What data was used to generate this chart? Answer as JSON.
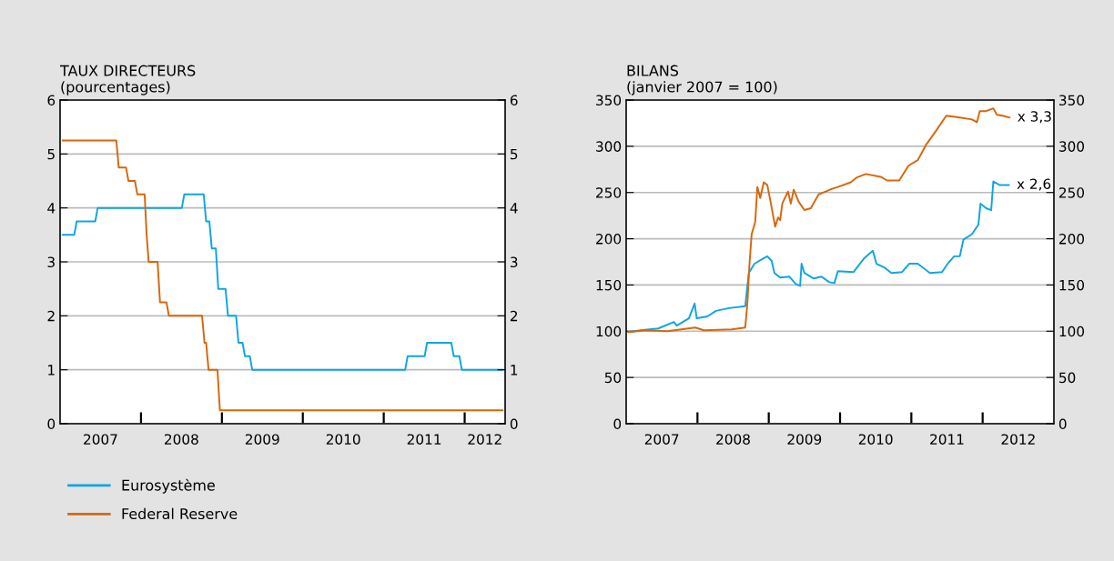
{
  "chart_data": [
    {
      "type": "line",
      "title": "TAUX DIRECTEURS",
      "subtitle": "(pourcentages)",
      "xlim": [
        2007,
        2012.5
      ],
      "xticks": [
        {
          "value": 2007.5,
          "label": "2007"
        },
        {
          "value": 2008,
          "label": null
        },
        {
          "value": 2008.5,
          "label": "2008"
        },
        {
          "value": 2009,
          "label": null
        },
        {
          "value": 2009.5,
          "label": "2009"
        },
        {
          "value": 2010,
          "label": null
        },
        {
          "value": 2010.5,
          "label": "2010"
        },
        {
          "value": 2011,
          "label": null
        },
        {
          "value": 2011.5,
          "label": "2011"
        },
        {
          "value": 2012,
          "label": null
        },
        {
          "value": 2012.25,
          "label": "2012"
        }
      ],
      "ylim": [
        0,
        6
      ],
      "yticks": [
        0,
        1,
        2,
        3,
        4,
        5,
        6
      ],
      "y2lim": [
        0,
        6
      ],
      "y2ticks": [
        0,
        1,
        2,
        3,
        4,
        5,
        6
      ],
      "grid": "y",
      "legend": "bottom",
      "series": [
        {
          "name": "Eurosystème",
          "color": "#0ea5e4",
          "x": [
            2007.03,
            2007.175,
            2007.205,
            2007.435,
            2007.465,
            2008.505,
            2008.535,
            2008.775,
            2008.805,
            2008.845,
            2008.875,
            2008.925,
            2008.955,
            2009.045,
            2009.075,
            2009.175,
            2009.205,
            2009.255,
            2009.285,
            2009.345,
            2009.375,
            2011.265,
            2011.295,
            2011.505,
            2011.535,
            2011.835,
            2011.865,
            2011.935,
            2011.965,
            2012.47
          ],
          "values": [
            3.5,
            3.5,
            3.75,
            3.75,
            4.0,
            4.0,
            4.25,
            4.25,
            3.75,
            3.75,
            3.25,
            3.25,
            2.5,
            2.5,
            2.0,
            2.0,
            1.5,
            1.5,
            1.25,
            1.25,
            1.0,
            1.0,
            1.25,
            1.25,
            1.5,
            1.5,
            1.25,
            1.25,
            1.0,
            1.0
          ]
        },
        {
          "name": "Federal Reserve",
          "color": "#d9660c",
          "x": [
            2007.03,
            2007.695,
            2007.725,
            2007.815,
            2007.845,
            2007.925,
            2007.955,
            2008.045,
            2008.07,
            2008.095,
            2008.205,
            2008.235,
            2008.315,
            2008.345,
            2008.755,
            2008.785,
            2008.805,
            2008.835,
            2008.945,
            2008.975,
            2012.47
          ],
          "values": [
            5.25,
            5.25,
            4.75,
            4.75,
            4.5,
            4.5,
            4.25,
            4.25,
            3.5,
            3.0,
            3.0,
            2.25,
            2.25,
            2.0,
            2.0,
            1.5,
            1.5,
            1.0,
            1.0,
            0.25,
            0.25
          ]
        }
      ]
    },
    {
      "type": "line",
      "title": "BILANS",
      "subtitle": "(janvier 2007 = 100)",
      "xlim": [
        2007,
        2013
      ],
      "xticks": [
        {
          "value": 2007.5,
          "label": "2007"
        },
        {
          "value": 2008,
          "label": null
        },
        {
          "value": 2008.5,
          "label": "2008"
        },
        {
          "value": 2009,
          "label": null
        },
        {
          "value": 2009.5,
          "label": "2009"
        },
        {
          "value": 2010,
          "label": null
        },
        {
          "value": 2010.5,
          "label": "2010"
        },
        {
          "value": 2011,
          "label": null
        },
        {
          "value": 2011.5,
          "label": "2011"
        },
        {
          "value": 2012,
          "label": null
        },
        {
          "value": 2012.5,
          "label": "2012"
        }
      ],
      "ylim": [
        0,
        350
      ],
      "yticks": [
        0,
        50,
        100,
        150,
        200,
        250,
        300,
        350
      ],
      "y2lim": [
        0,
        350
      ],
      "y2ticks": [
        0,
        50,
        100,
        150,
        200,
        250,
        300,
        350
      ],
      "grid": "y",
      "annotations": [
        {
          "text": "x 3,3",
          "x": 2012.38,
          "y": 331
        },
        {
          "text": "x 2,6",
          "x": 2012.37,
          "y": 258
        }
      ],
      "series": [
        {
          "color": "#0ea5e4",
          "x": [
            2007.03,
            2007.2,
            2007.45,
            2007.67,
            2007.71,
            2007.88,
            2007.96,
            2007.99,
            2008.14,
            2008.26,
            2008.44,
            2008.67,
            2008.72,
            2008.8,
            2008.91,
            2008.98,
            2009.04,
            2009.08,
            2009.16,
            2009.29,
            2009.38,
            2009.44,
            2009.46,
            2009.5,
            2009.63,
            2009.74,
            2009.85,
            2009.92,
            2009.97,
            2010.19,
            2010.34,
            2010.46,
            2010.51,
            2010.62,
            2010.72,
            2010.87,
            2010.97,
            2011.09,
            2011.26,
            2011.43,
            2011.51,
            2011.6,
            2011.68,
            2011.73,
            2011.85,
            2011.94,
            2011.97,
            2012.05,
            2012.12,
            2012.15,
            2012.24,
            2012.37
          ],
          "values": [
            99,
            101,
            103,
            110,
            106,
            114,
            130,
            114,
            116,
            122,
            125,
            127,
            163,
            173,
            178,
            181,
            176,
            163,
            158,
            159,
            151,
            149,
            173,
            163,
            157,
            159,
            153,
            152,
            165,
            164,
            179,
            187,
            173,
            169,
            163,
            164,
            173,
            173,
            163,
            164,
            173,
            181,
            181,
            199,
            205,
            215,
            238,
            233,
            231,
            262,
            258,
            258
          ]
        },
        {
          "color": "#d9660c",
          "x": [
            2007.03,
            2007.28,
            2007.58,
            2007.97,
            2008.09,
            2008.48,
            2008.67,
            2008.7,
            2008.73,
            2008.76,
            2008.81,
            2008.84,
            2008.88,
            2008.93,
            2008.98,
            2009.03,
            2009.09,
            2009.13,
            2009.16,
            2009.19,
            2009.27,
            2009.31,
            2009.35,
            2009.42,
            2009.5,
            2009.59,
            2009.7,
            2009.8,
            2009.89,
            2009.97,
            2010.15,
            2010.23,
            2010.36,
            2010.57,
            2010.66,
            2010.83,
            2010.96,
            2011.09,
            2011.21,
            2011.34,
            2011.49,
            2011.68,
            2011.85,
            2011.92,
            2011.96,
            2012.05,
            2012.15,
            2012.2,
            2012.28,
            2012.38
          ],
          "values": [
            99,
            101,
            100,
            104,
            101,
            102,
            104,
            130,
            173,
            205,
            218,
            256,
            244,
            261,
            258,
            238,
            213,
            223,
            220,
            238,
            251,
            238,
            253,
            240,
            231,
            233,
            248,
            251,
            254,
            256,
            261,
            266,
            270,
            267,
            263,
            263,
            279,
            285,
            302,
            316,
            333,
            331,
            329,
            326,
            338,
            338,
            341,
            334,
            333,
            331
          ]
        }
      ]
    }
  ]
}
